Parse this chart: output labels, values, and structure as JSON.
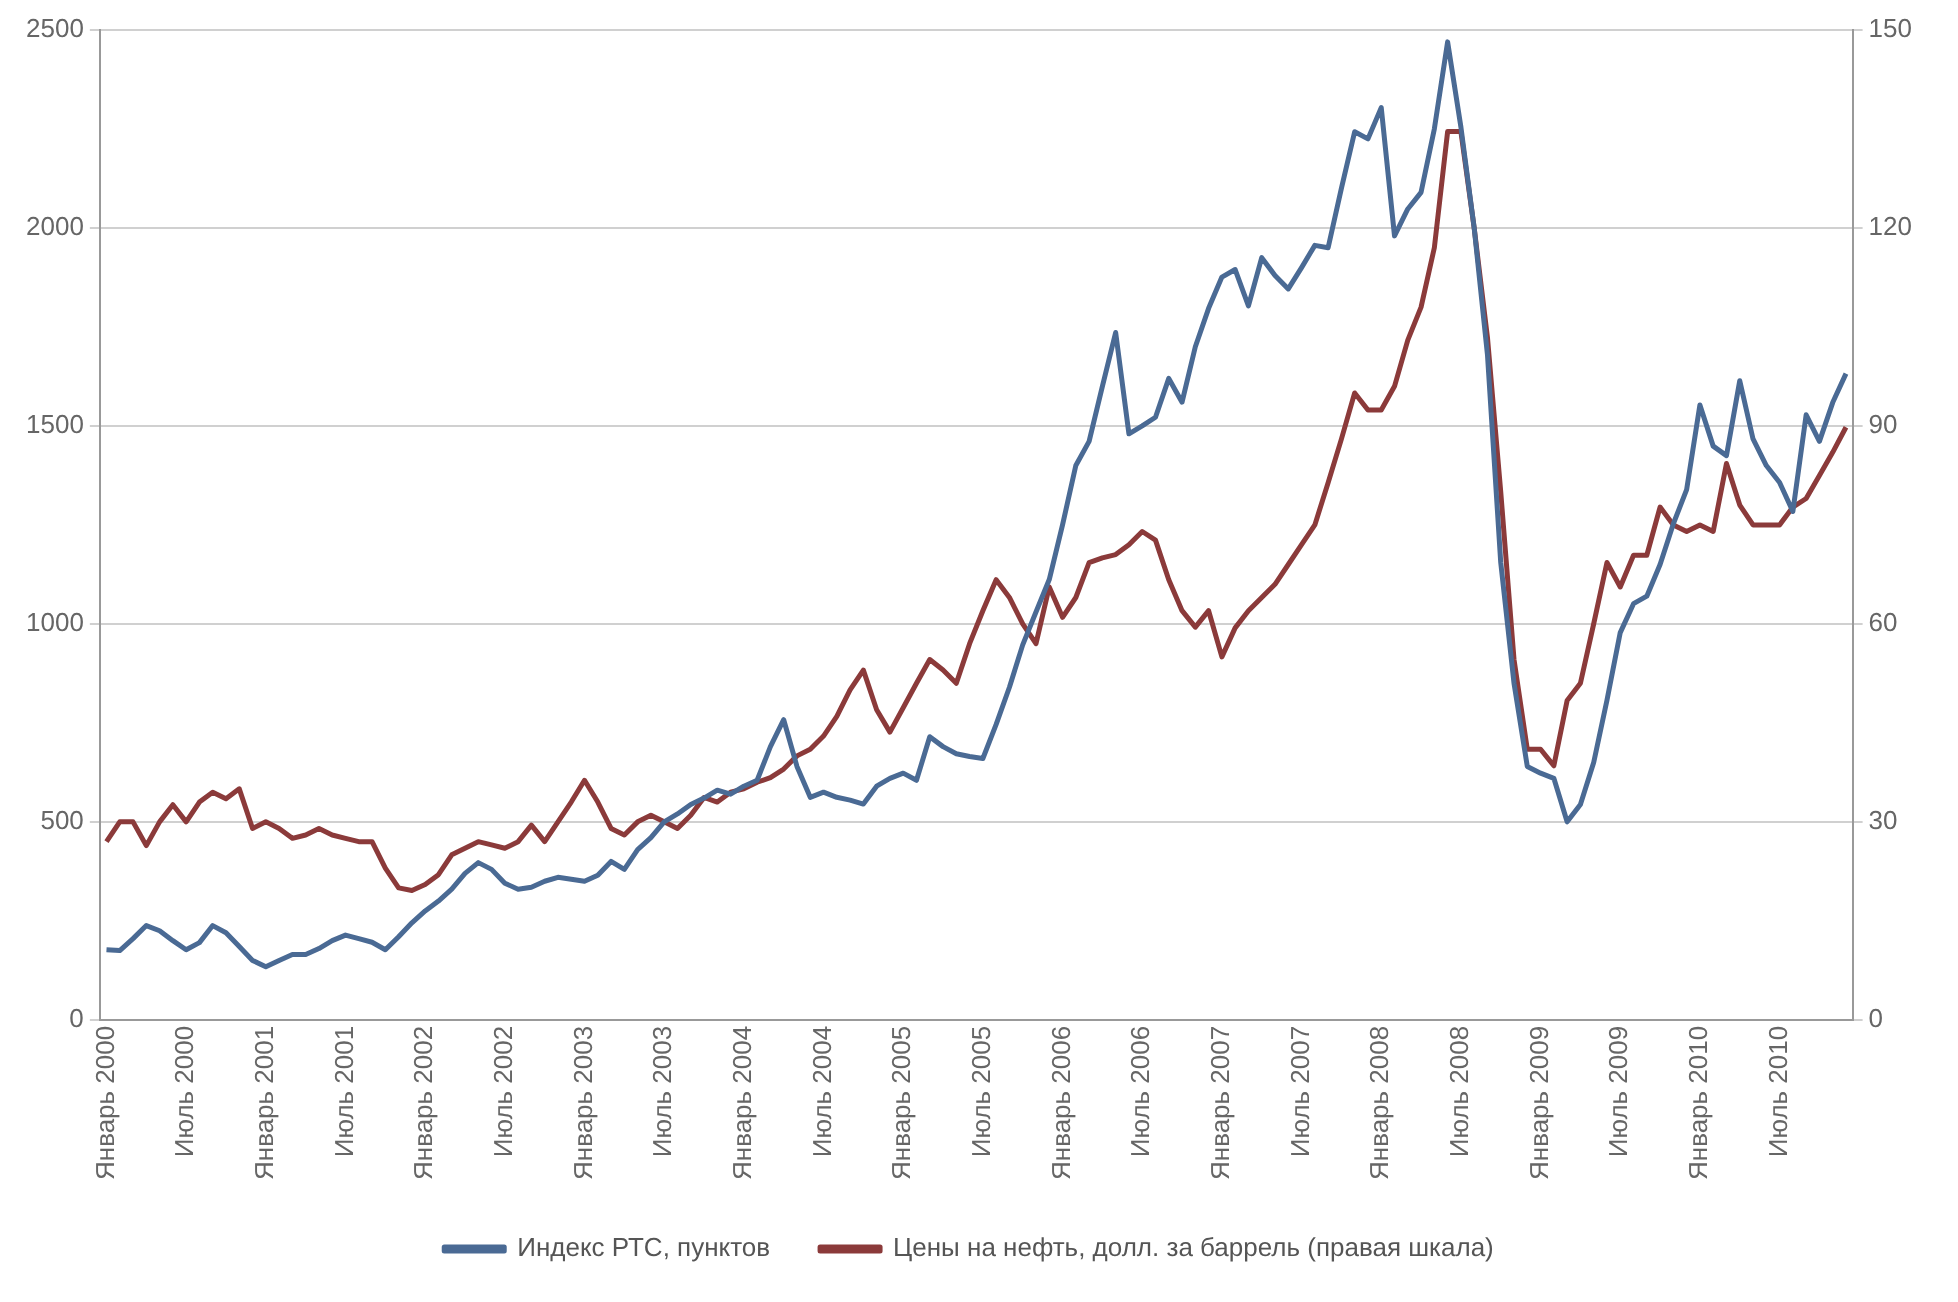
{
  "chart_data": {
    "type": "line",
    "categories": [
      "Январь 2000",
      null,
      null,
      null,
      null,
      null,
      "Июль 2000",
      null,
      null,
      null,
      null,
      null,
      "Январь 2001",
      null,
      null,
      null,
      null,
      null,
      "Июль 2001",
      null,
      null,
      null,
      null,
      null,
      "Январь 2002",
      null,
      null,
      null,
      null,
      null,
      "Июль 2002",
      null,
      null,
      null,
      null,
      null,
      "Январь 2003",
      null,
      null,
      null,
      null,
      null,
      "Июль 2003",
      null,
      null,
      null,
      null,
      null,
      "Январь 2004",
      null,
      null,
      null,
      null,
      null,
      "Июль 2004",
      null,
      null,
      null,
      null,
      null,
      "Январь 2005",
      null,
      null,
      null,
      null,
      null,
      "Июль 2005",
      null,
      null,
      null,
      null,
      null,
      "Январь 2006",
      null,
      null,
      null,
      null,
      null,
      "Июль 2006",
      null,
      null,
      null,
      null,
      null,
      "Январь 2007",
      null,
      null,
      null,
      null,
      null,
      "Июль 2007",
      null,
      null,
      null,
      null,
      null,
      "Январь 2008",
      null,
      null,
      null,
      null,
      null,
      "Июль 2008",
      null,
      null,
      null,
      null,
      null,
      "Январь 2009",
      null,
      null,
      null,
      null,
      null,
      "Июль 2009",
      null,
      null,
      null,
      null,
      null,
      "Январь 2010",
      null,
      null,
      null,
      null,
      null,
      "Июль 2010",
      null,
      null,
      null,
      null,
      null
    ],
    "series": [
      {
        "name": "Индекс РТС, пунктов",
        "color": "#4a6a94",
        "values": [
          177,
          175,
          205,
          238,
          225,
          200,
          177,
          195,
          238,
          220,
          185,
          150,
          134,
          150,
          165,
          165,
          180,
          200,
          214,
          205,
          196,
          177,
          210,
          245,
          275,
          300,
          330,
          370,
          397,
          380,
          345,
          330,
          335,
          350,
          360,
          355,
          350,
          365,
          400,
          380,
          430,
          460,
          500,
          520,
          544,
          560,
          580,
          570,
          590,
          605,
          690,
          758,
          640,
          562,
          575,
          562,
          555,
          545,
          590,
          610,
          623,
          605,
          715,
          690,
          672,
          665,
          660,
          746,
          840,
          947,
          1030,
          1112,
          1250,
          1400,
          1461,
          1600,
          1736,
          1480,
          1500,
          1522,
          1620,
          1560,
          1700,
          1797,
          1876,
          1895,
          1803,
          1925,
          1880,
          1846,
          1900,
          1956,
          1950,
          2100,
          2243,
          2225,
          2304,
          1980,
          2048,
          2090,
          2250,
          2470,
          2255,
          2000,
          1680,
          1155,
          850,
          640,
          623,
          610,
          500,
          544,
          650,
          807,
          978,
          1051,
          1070,
          1150,
          1253,
          1339,
          1553,
          1449,
          1425,
          1614,
          1467,
          1400,
          1357,
          1284,
          1528,
          1461,
          1559,
          1632
        ]
      },
      {
        "name": "Цены на нефть, долл. за баррель (правая шкала)",
        "color": "#8b3a3a",
        "axis": "y2",
        "values": [
          27,
          30,
          30,
          26.4,
          30,
          32.6,
          30,
          33,
          34.5,
          33.5,
          35,
          29,
          30,
          29,
          27.5,
          28,
          29,
          28,
          27.5,
          27,
          27,
          23,
          20,
          19.6,
          20.5,
          22,
          25,
          26,
          27,
          26.5,
          26,
          27,
          29.5,
          27,
          30,
          33,
          36.3,
          33,
          29,
          28,
          30,
          31,
          30,
          29,
          31,
          33.7,
          33,
          34.5,
          35,
          36,
          36.7,
          38,
          40,
          41,
          43,
          46,
          50,
          53,
          47,
          43.6,
          47.3,
          51,
          54.6,
          53,
          51,
          57,
          62,
          66.7,
          64,
          60,
          57,
          65.6,
          61,
          64,
          69.3,
          70,
          70.5,
          72,
          74,
          72.7,
          66.7,
          62,
          59.5,
          62,
          55,
          59.4,
          62,
          64,
          66,
          69,
          72,
          75,
          81.4,
          88,
          95,
          92.4,
          92.4,
          96,
          103,
          108,
          117,
          134.6,
          134.6,
          120,
          103.4,
          80,
          54.6,
          41,
          41,
          38.5,
          48.4,
          51,
          60,
          69.3,
          65.6,
          70.4,
          70.4,
          77.7,
          75,
          74,
          75,
          74,
          84.3,
          78,
          75,
          75,
          75,
          77.7,
          79,
          82.5,
          86,
          89.8
        ]
      }
    ],
    "ylim": [
      0,
      2500
    ],
    "yticks": [
      0,
      500,
      1000,
      1500,
      2000,
      2500
    ],
    "y2lim": [
      0,
      150
    ],
    "y2ticks": [
      0,
      30,
      60,
      90,
      120,
      150
    ],
    "grid": "y",
    "legend": "bottom",
    "marker": "none",
    "line_style": "solid"
  }
}
